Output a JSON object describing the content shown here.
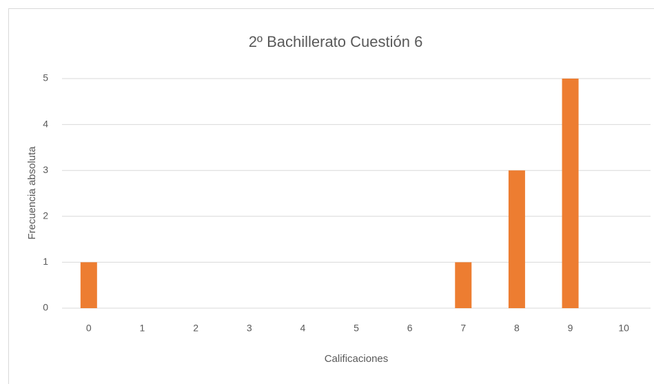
{
  "chart_data": {
    "type": "bar",
    "title": "2º Bachillerato  Cuestión 6",
    "x_label": "Calificaciones",
    "y_label": "Frecuencia absoluta",
    "categories": [
      "0",
      "1",
      "2",
      "3",
      "4",
      "5",
      "6",
      "7",
      "8",
      "9",
      "10"
    ],
    "values": [
      1,
      0,
      0,
      0,
      0,
      0,
      0,
      1,
      3,
      5,
      0
    ],
    "color": "#ed7d31",
    "ylim": [
      0,
      5
    ],
    "yticks": [
      0,
      1,
      2,
      3,
      4,
      5
    ],
    "grid": true
  }
}
